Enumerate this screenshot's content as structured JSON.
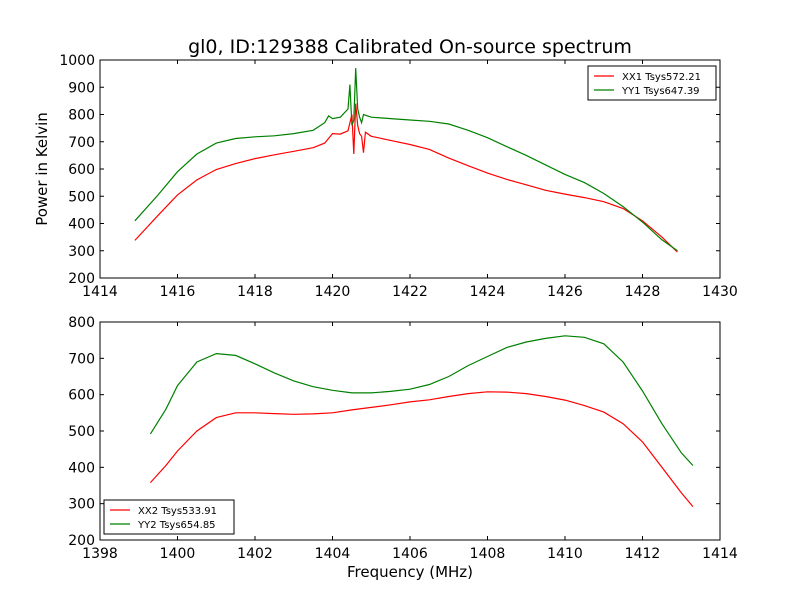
{
  "title": "gl0, ID:129388 Calibrated On-source spectrum",
  "ylabel": "Power in Kelvin",
  "xlabel": "Frequency (MHz)",
  "chart_data": [
    {
      "type": "line",
      "xlim": [
        1414,
        1430
      ],
      "ylim": [
        200,
        1000
      ],
      "xticks": [
        1414,
        1416,
        1418,
        1420,
        1422,
        1424,
        1426,
        1428,
        1430
      ],
      "yticks": [
        200,
        300,
        400,
        500,
        600,
        700,
        800,
        900,
        1000
      ],
      "grid": false,
      "legend_position": "top-right",
      "series": [
        {
          "name": "XX1 Tsys572.21",
          "color": "#ff0000",
          "points": [
            [
              1414.9,
              338
            ],
            [
              1415.5,
              430
            ],
            [
              1416.0,
              505
            ],
            [
              1416.5,
              560
            ],
            [
              1417.0,
              598
            ],
            [
              1417.5,
              620
            ],
            [
              1418.0,
              638
            ],
            [
              1418.5,
              652
            ],
            [
              1419.0,
              665
            ],
            [
              1419.5,
              678
            ],
            [
              1419.8,
              695
            ],
            [
              1420.0,
              730
            ],
            [
              1420.2,
              728
            ],
            [
              1420.4,
              740
            ],
            [
              1420.5,
              800
            ],
            [
              1420.55,
              655
            ],
            [
              1420.6,
              840
            ],
            [
              1420.65,
              760
            ],
            [
              1420.7,
              730
            ],
            [
              1420.75,
              720
            ],
            [
              1420.8,
              660
            ],
            [
              1420.85,
              735
            ],
            [
              1421.0,
              720
            ],
            [
              1421.5,
              705
            ],
            [
              1422.0,
              690
            ],
            [
              1422.5,
              672
            ],
            [
              1423.0,
              640
            ],
            [
              1423.5,
              612
            ],
            [
              1424.0,
              585
            ],
            [
              1424.5,
              562
            ],
            [
              1425.0,
              542
            ],
            [
              1425.5,
              522
            ],
            [
              1426.0,
              508
            ],
            [
              1426.5,
              495
            ],
            [
              1427.0,
              480
            ],
            [
              1427.5,
              455
            ],
            [
              1428.0,
              410
            ],
            [
              1428.5,
              350
            ],
            [
              1428.9,
              295
            ]
          ]
        },
        {
          "name": "YY1 Tsys647.39",
          "color": "#008000",
          "points": [
            [
              1414.9,
              410
            ],
            [
              1415.5,
              505
            ],
            [
              1416.0,
              590
            ],
            [
              1416.5,
              655
            ],
            [
              1417.0,
              695
            ],
            [
              1417.5,
              712
            ],
            [
              1418.0,
              718
            ],
            [
              1418.5,
              722
            ],
            [
              1419.0,
              730
            ],
            [
              1419.5,
              742
            ],
            [
              1419.8,
              770
            ],
            [
              1419.9,
              795
            ],
            [
              1420.0,
              785
            ],
            [
              1420.2,
              790
            ],
            [
              1420.4,
              820
            ],
            [
              1420.45,
              910
            ],
            [
              1420.5,
              760
            ],
            [
              1420.55,
              780
            ],
            [
              1420.6,
              970
            ],
            [
              1420.65,
              820
            ],
            [
              1420.7,
              790
            ],
            [
              1420.75,
              770
            ],
            [
              1420.8,
              800
            ],
            [
              1421.0,
              790
            ],
            [
              1421.5,
              785
            ],
            [
              1422.0,
              780
            ],
            [
              1422.5,
              775
            ],
            [
              1423.0,
              765
            ],
            [
              1423.5,
              742
            ],
            [
              1424.0,
              715
            ],
            [
              1424.5,
              682
            ],
            [
              1425.0,
              650
            ],
            [
              1425.5,
              615
            ],
            [
              1426.0,
              580
            ],
            [
              1426.5,
              550
            ],
            [
              1427.0,
              510
            ],
            [
              1427.5,
              462
            ],
            [
              1428.0,
              405
            ],
            [
              1428.5,
              340
            ],
            [
              1428.9,
              300
            ]
          ]
        }
      ]
    },
    {
      "type": "line",
      "xlim": [
        1398,
        1414
      ],
      "ylim": [
        200,
        800
      ],
      "xticks": [
        1398,
        1400,
        1402,
        1404,
        1406,
        1408,
        1410,
        1412,
        1414
      ],
      "yticks": [
        200,
        300,
        400,
        500,
        600,
        700,
        800
      ],
      "grid": false,
      "legend_position": "bottom-left",
      "series": [
        {
          "name": "XX2 Tsys533.91",
          "color": "#ff0000",
          "points": [
            [
              1399.3,
              358
            ],
            [
              1399.7,
              405
            ],
            [
              1400.0,
              445
            ],
            [
              1400.5,
              500
            ],
            [
              1401.0,
              537
            ],
            [
              1401.5,
              550
            ],
            [
              1402.0,
              550
            ],
            [
              1402.5,
              548
            ],
            [
              1403.0,
              546
            ],
            [
              1403.5,
              547
            ],
            [
              1404.0,
              550
            ],
            [
              1404.5,
              558
            ],
            [
              1405.0,
              565
            ],
            [
              1405.5,
              572
            ],
            [
              1406.0,
              580
            ],
            [
              1406.5,
              586
            ],
            [
              1407.0,
              595
            ],
            [
              1407.5,
              603
            ],
            [
              1408.0,
              608
            ],
            [
              1408.5,
              607
            ],
            [
              1409.0,
              603
            ],
            [
              1409.5,
              595
            ],
            [
              1410.0,
              585
            ],
            [
              1410.5,
              570
            ],
            [
              1411.0,
              552
            ],
            [
              1411.5,
              520
            ],
            [
              1412.0,
              470
            ],
            [
              1412.5,
              400
            ],
            [
              1413.0,
              330
            ],
            [
              1413.3,
              292
            ]
          ]
        },
        {
          "name": "YY2 Tsys654.85",
          "color": "#008000",
          "points": [
            [
              1399.3,
              492
            ],
            [
              1399.7,
              560
            ],
            [
              1400.0,
              625
            ],
            [
              1400.5,
              690
            ],
            [
              1401.0,
              713
            ],
            [
              1401.5,
              708
            ],
            [
              1402.0,
              685
            ],
            [
              1402.5,
              660
            ],
            [
              1403.0,
              638
            ],
            [
              1403.5,
              622
            ],
            [
              1404.0,
              612
            ],
            [
              1404.5,
              605
            ],
            [
              1405.0,
              605
            ],
            [
              1405.5,
              609
            ],
            [
              1406.0,
              615
            ],
            [
              1406.5,
              628
            ],
            [
              1407.0,
              650
            ],
            [
              1407.5,
              680
            ],
            [
              1408.0,
              705
            ],
            [
              1408.5,
              730
            ],
            [
              1409.0,
              745
            ],
            [
              1409.5,
              755
            ],
            [
              1410.0,
              762
            ],
            [
              1410.5,
              758
            ],
            [
              1411.0,
              740
            ],
            [
              1411.5,
              690
            ],
            [
              1412.0,
              610
            ],
            [
              1412.5,
              520
            ],
            [
              1413.0,
              440
            ],
            [
              1413.3,
              405
            ]
          ]
        }
      ]
    }
  ]
}
